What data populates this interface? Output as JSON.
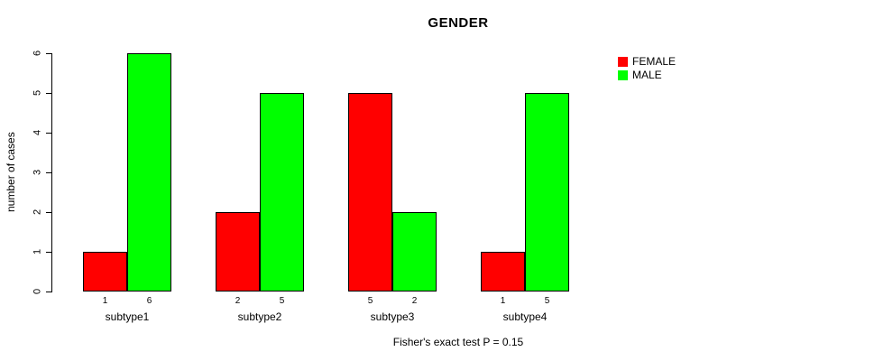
{
  "chart_data": {
    "type": "bar",
    "title": "GENDER",
    "ylabel": "number of cases",
    "xlabel": "",
    "ylim": [
      0,
      6
    ],
    "yticks": [
      0,
      1,
      2,
      3,
      4,
      5,
      6
    ],
    "categories": [
      "subtype1",
      "subtype2",
      "subtype3",
      "subtype4"
    ],
    "series": [
      {
        "name": "FEMALE",
        "color": "#ff0000",
        "values": [
          1,
          2,
          5,
          1
        ]
      },
      {
        "name": "MALE",
        "color": "#00ff00",
        "values": [
          6,
          5,
          2,
          5
        ]
      }
    ],
    "bar_value_labels_shown": true,
    "legend_position": "top-right",
    "grid": false,
    "footnote": "Fisher's exact test P = 0.15"
  }
}
